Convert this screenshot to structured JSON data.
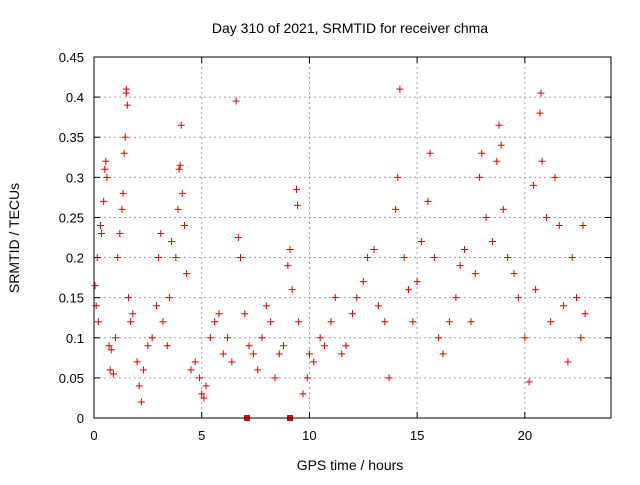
{
  "chart_data": {
    "type": "scatter",
    "title": "Day 310 of 2021, SRMTID for receiver chma",
    "xlabel": "GPS time / hours",
    "ylabel": "SRMTID / TECUs",
    "xlim": [
      0,
      24
    ],
    "ylim": [
      0,
      0.45
    ],
    "xticks": [
      0,
      5,
      10,
      15,
      20
    ],
    "xtick_labels": [
      "0",
      "5",
      "10",
      "15",
      "20"
    ],
    "yticks": [
      0,
      0.05,
      0.1,
      0.15,
      0.2,
      0.25,
      0.3,
      0.35,
      0.4,
      0.45
    ],
    "ytick_labels": [
      "0",
      "0.05",
      "0.1",
      "0.15",
      "0.2",
      "0.25",
      "0.3",
      "0.35",
      "0.4",
      "0.45"
    ],
    "grid": true,
    "marker": "+",
    "color": "#e00000",
    "series": [
      {
        "name": "SRMTID",
        "points": [
          [
            0.05,
            0.165
          ],
          [
            0.1,
            0.14
          ],
          [
            0.15,
            0.2
          ],
          [
            0.2,
            0.12
          ],
          [
            0.3,
            0.24
          ],
          [
            0.35,
            0.23
          ],
          [
            0.45,
            0.27
          ],
          [
            0.5,
            0.31
          ],
          [
            0.55,
            0.32
          ],
          [
            0.6,
            0.3
          ],
          [
            0.7,
            0.09
          ],
          [
            0.75,
            0.06
          ],
          [
            0.8,
            0.085
          ],
          [
            0.9,
            0.055
          ],
          [
            1.0,
            0.1
          ],
          [
            1.1,
            0.2
          ],
          [
            1.2,
            0.23
          ],
          [
            1.3,
            0.26
          ],
          [
            1.35,
            0.28
          ],
          [
            1.4,
            0.33
          ],
          [
            1.45,
            0.35
          ],
          [
            1.5,
            0.41
          ],
          [
            1.5,
            0.405
          ],
          [
            1.55,
            0.39
          ],
          [
            1.6,
            0.15
          ],
          [
            1.7,
            0.12
          ],
          [
            1.8,
            0.13
          ],
          [
            2.0,
            0.07
          ],
          [
            2.1,
            0.04
          ],
          [
            2.2,
            0.02
          ],
          [
            2.3,
            0.06
          ],
          [
            2.5,
            0.09
          ],
          [
            2.7,
            0.1
          ],
          [
            2.9,
            0.14
          ],
          [
            3.0,
            0.2
          ],
          [
            3.1,
            0.23
          ],
          [
            3.2,
            0.12
          ],
          [
            3.4,
            0.09
          ],
          [
            3.5,
            0.15
          ],
          [
            3.6,
            0.22
          ],
          [
            3.8,
            0.2
          ],
          [
            3.9,
            0.26
          ],
          [
            3.95,
            0.31
          ],
          [
            4.0,
            0.315
          ],
          [
            4.05,
            0.365
          ],
          [
            4.1,
            0.28
          ],
          [
            4.2,
            0.24
          ],
          [
            4.3,
            0.18
          ],
          [
            4.5,
            0.06
          ],
          [
            4.7,
            0.07
          ],
          [
            4.9,
            0.05
          ],
          [
            5.0,
            0.03
          ],
          [
            5.1,
            0.025
          ],
          [
            5.2,
            0.04
          ],
          [
            5.4,
            0.1
          ],
          [
            5.6,
            0.12
          ],
          [
            5.8,
            0.13
          ],
          [
            6.0,
            0.08
          ],
          [
            6.2,
            0.1
          ],
          [
            6.4,
            0.07
          ],
          [
            6.6,
            0.395
          ],
          [
            6.7,
            0.225
          ],
          [
            6.8,
            0.2
          ],
          [
            7.0,
            0.13
          ],
          [
            7.2,
            0.09
          ],
          [
            7.4,
            0.08
          ],
          [
            7.6,
            0.06
          ],
          [
            7.8,
            0.1
          ],
          [
            8.0,
            0.14
          ],
          [
            8.2,
            0.12
          ],
          [
            8.4,
            0.05
          ],
          [
            8.6,
            0.08
          ],
          [
            8.8,
            0.09
          ],
          [
            9.0,
            0.19
          ],
          [
            9.1,
            0.21
          ],
          [
            9.2,
            0.16
          ],
          [
            9.4,
            0.285
          ],
          [
            9.45,
            0.265
          ],
          [
            9.5,
            0.12
          ],
          [
            9.7,
            0.03
          ],
          [
            9.9,
            0.05
          ],
          [
            10.0,
            0.08
          ],
          [
            10.2,
            0.07
          ],
          [
            10.5,
            0.1
          ],
          [
            10.7,
            0.09
          ],
          [
            11.0,
            0.12
          ],
          [
            11.2,
            0.15
          ],
          [
            11.5,
            0.08
          ],
          [
            11.7,
            0.09
          ],
          [
            12.0,
            0.13
          ],
          [
            12.2,
            0.15
          ],
          [
            12.5,
            0.17
          ],
          [
            12.7,
            0.2
          ],
          [
            13.0,
            0.21
          ],
          [
            13.2,
            0.14
          ],
          [
            13.5,
            0.12
          ],
          [
            13.7,
            0.05
          ],
          [
            14.0,
            0.26
          ],
          [
            14.1,
            0.3
          ],
          [
            14.2,
            0.41
          ],
          [
            14.4,
            0.2
          ],
          [
            14.6,
            0.16
          ],
          [
            14.8,
            0.12
          ],
          [
            15.0,
            0.17
          ],
          [
            15.2,
            0.22
          ],
          [
            15.5,
            0.27
          ],
          [
            15.6,
            0.33
          ],
          [
            15.8,
            0.2
          ],
          [
            16.0,
            0.1
          ],
          [
            16.2,
            0.08
          ],
          [
            16.5,
            0.12
          ],
          [
            16.8,
            0.15
          ],
          [
            17.0,
            0.19
          ],
          [
            17.2,
            0.21
          ],
          [
            17.5,
            0.12
          ],
          [
            17.7,
            0.18
          ],
          [
            17.9,
            0.3
          ],
          [
            18.0,
            0.33
          ],
          [
            18.2,
            0.25
          ],
          [
            18.5,
            0.22
          ],
          [
            18.7,
            0.32
          ],
          [
            18.8,
            0.365
          ],
          [
            18.9,
            0.34
          ],
          [
            19.0,
            0.26
          ],
          [
            19.2,
            0.2
          ],
          [
            19.5,
            0.18
          ],
          [
            19.7,
            0.15
          ],
          [
            20.0,
            0.1
          ],
          [
            20.2,
            0.045
          ],
          [
            20.4,
            0.29
          ],
          [
            20.5,
            0.16
          ],
          [
            20.7,
            0.38
          ],
          [
            20.75,
            0.405
          ],
          [
            20.8,
            0.32
          ],
          [
            21.0,
            0.25
          ],
          [
            21.2,
            0.12
          ],
          [
            21.4,
            0.3
          ],
          [
            21.6,
            0.24
          ],
          [
            21.8,
            0.14
          ],
          [
            22.0,
            0.07
          ],
          [
            22.2,
            0.2
          ],
          [
            22.4,
            0.15
          ],
          [
            22.6,
            0.1
          ],
          [
            22.7,
            0.24
          ],
          [
            22.8,
            0.13
          ]
        ]
      },
      {
        "name": "SRMTID (zero)",
        "marker": "square",
        "points": [
          [
            7.1,
            0.0
          ],
          [
            9.1,
            0.0
          ]
        ]
      }
    ]
  }
}
